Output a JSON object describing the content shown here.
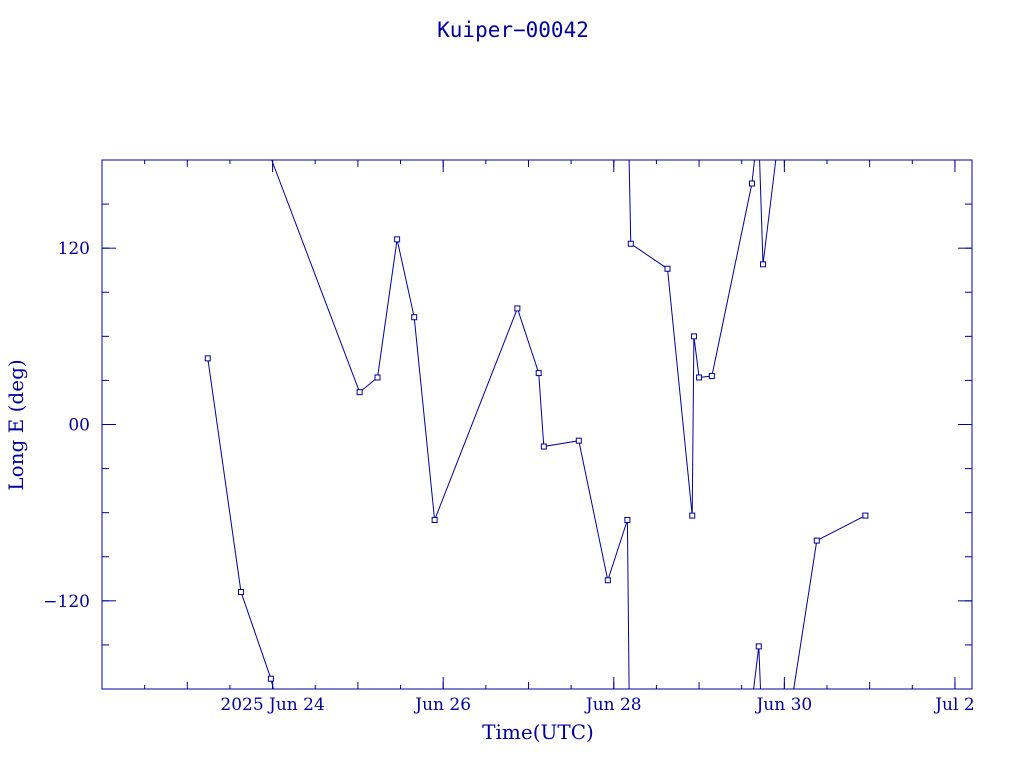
{
  "chart_data": {
    "type": "line",
    "title": "Kuiper−00042",
    "xlabel": "Time(UTC)",
    "ylabel": "Long E (deg)",
    "line_color": "#00009c",
    "background": "#ffffff",
    "x_unit": "days after 2025-06-22 00:00 UTC",
    "xlim": [
      0,
      10.2
    ],
    "ylim": [
      -180,
      180
    ],
    "x_ticks": [
      {
        "x": 2,
        "label": "2025 Jun 24"
      },
      {
        "x": 4,
        "label": "Jun 26"
      },
      {
        "x": 6,
        "label": "Jun 28"
      },
      {
        "x": 8,
        "label": "Jun 30"
      },
      {
        "x": 10,
        "label": "Jul  2"
      }
    ],
    "y_ticks": [
      {
        "y": 120,
        "label": "120"
      },
      {
        "y": 0,
        "label": "00"
      },
      {
        "y": -120,
        "label": "−120"
      }
    ],
    "segments": [
      [
        [
          1.24,
          45
        ],
        [
          1.63,
          -114
        ],
        [
          1.98,
          -173
        ],
        [
          2.01,
          -180
        ]
      ],
      [
        [
          1.99,
          180
        ],
        [
          3.02,
          22
        ],
        [
          3.23,
          32
        ],
        [
          3.46,
          126
        ],
        [
          3.66,
          73
        ],
        [
          3.9,
          -65
        ],
        [
          4.87,
          79
        ],
        [
          5.12,
          35
        ],
        [
          5.18,
          -15
        ],
        [
          5.59,
          -11
        ],
        [
          5.93,
          -106
        ],
        [
          6.16,
          -65
        ],
        [
          6.18,
          -180
        ]
      ],
      [
        [
          6.18,
          180
        ],
        [
          6.2,
          123
        ],
        [
          6.63,
          106
        ],
        [
          6.92,
          -62
        ],
        [
          6.94,
          60
        ],
        [
          7.0,
          32
        ],
        [
          7.15,
          33
        ],
        [
          7.62,
          164
        ],
        [
          7.65,
          180
        ]
      ],
      [
        [
          7.64,
          -180
        ],
        [
          7.7,
          -151
        ],
        [
          7.72,
          -180
        ]
      ],
      [
        [
          7.71,
          180
        ],
        [
          7.75,
          109
        ],
        [
          7.9,
          180
        ]
      ],
      [
        [
          8.11,
          -180
        ],
        [
          8.38,
          -79
        ],
        [
          8.95,
          -62
        ]
      ]
    ]
  }
}
